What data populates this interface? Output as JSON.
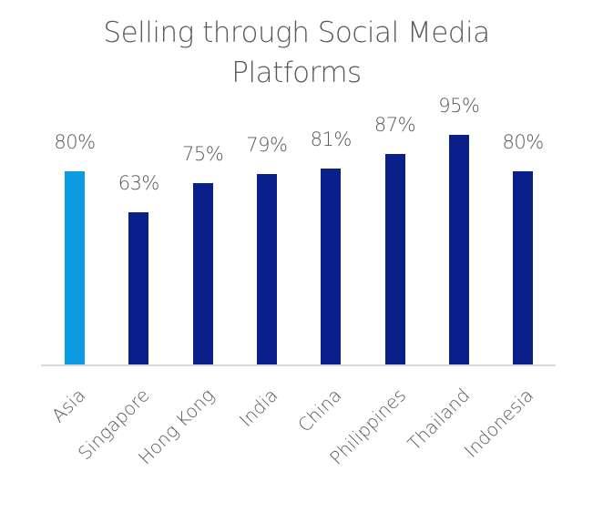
{
  "chart_data": {
    "type": "bar",
    "title": "Selling through Social Media Platforms",
    "title_lines": [
      "Selling through Social Media",
      "Platforms"
    ],
    "categories": [
      "Asia",
      "Singapore",
      "Hong Kong",
      "India",
      "China",
      "Philippines",
      "Thailand",
      "Indonesia"
    ],
    "values": [
      80,
      63,
      75,
      79,
      81,
      87,
      95,
      80
    ],
    "labels": [
      "80%",
      "63%",
      "75%",
      "79%",
      "81%",
      "87%",
      "95%",
      "80%"
    ],
    "colors": [
      "#0a9be2",
      "#0b1f8a",
      "#0b1f8a",
      "#0b1f8a",
      "#0b1f8a",
      "#0b1f8a",
      "#0b1f8a",
      "#0b1f8a"
    ],
    "xlabel": "",
    "ylabel": "",
    "ylim": [
      0,
      100
    ],
    "grid": false,
    "legend": null,
    "value_format": "percent"
  }
}
